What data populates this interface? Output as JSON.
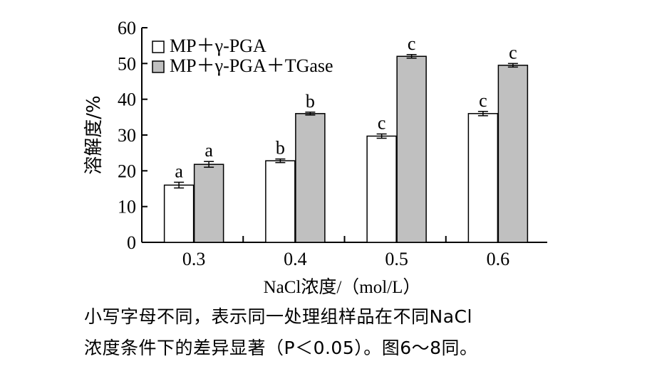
{
  "chart_data": {
    "type": "bar",
    "categories": [
      "0.3",
      "0.4",
      "0.5",
      "0.6"
    ],
    "series": [
      {
        "name": "MP＋γ-PGA",
        "fill": "#ffffff",
        "values": [
          16.0,
          22.8,
          29.7,
          36.0
        ],
        "errors": [
          0.8,
          0.5,
          0.6,
          0.6
        ],
        "letters": [
          "a",
          "b",
          "c",
          "c"
        ]
      },
      {
        "name": "MP＋γ-PGA＋TGase",
        "fill": "#c0c0c0",
        "values": [
          21.8,
          36.0,
          52.0,
          49.5
        ],
        "errors": [
          0.8,
          0.4,
          0.5,
          0.5
        ],
        "letters": [
          "a",
          "b",
          "c",
          "c"
        ]
      }
    ],
    "xlabel": "NaCl浓度/（mol/L）",
    "ylabel": "溶解度/%",
    "ylim": [
      0,
      60
    ],
    "yticks": [
      "0",
      "10",
      "20",
      "30",
      "40",
      "50",
      "60"
    ],
    "grid": false,
    "legend_position": "top-left"
  },
  "caption": {
    "line1": "小写字母不同，表示同一处理组样品在不同NaCl",
    "line2": "浓度条件下的差异显著（P＜0.05）。图6～8同。"
  }
}
